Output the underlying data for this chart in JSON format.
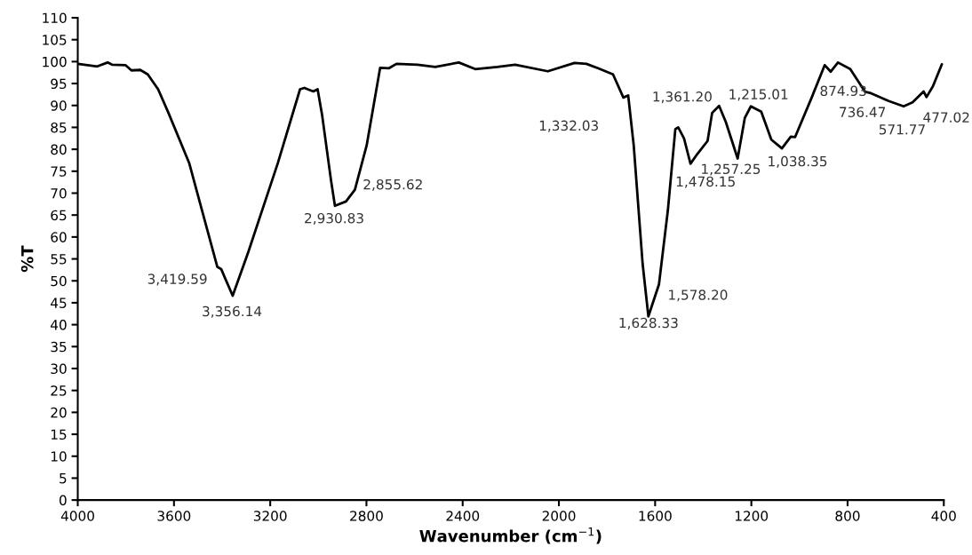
{
  "chart_data": {
    "type": "line",
    "xlabel": "Wavenumber (cm$^{−1}$)",
    "ylabel": "%T",
    "xlim": [
      4000,
      400
    ],
    "xticks": [
      4000,
      3600,
      3200,
      2800,
      2400,
      2000,
      1600,
      1200,
      800,
      400
    ],
    "ylim": [
      0,
      110
    ],
    "yticks": [
      0,
      5,
      10,
      15,
      20,
      25,
      30,
      35,
      40,
      45,
      50,
      55,
      60,
      65,
      70,
      75,
      80,
      85,
      90,
      95,
      100,
      105,
      110
    ],
    "grid": false,
    "marker": "none",
    "line_style": "solid",
    "series": [
      {
        "color": "#000000",
        "x": [
          4000,
          3919,
          3876,
          3858,
          3802,
          3777,
          3740,
          3709,
          3666,
          3623,
          3537,
          3420,
          3404,
          3356,
          3291,
          3168,
          3076,
          3058,
          3021,
          3003,
          2984,
          2947,
          2931,
          2885,
          2848,
          2799,
          2743,
          2706,
          2675,
          2588,
          2514,
          2416,
          2348,
          2256,
          2182,
          2046,
          1935,
          1886,
          1838,
          1775,
          1732,
          1712,
          1689,
          1652,
          1628,
          1584,
          1547,
          1516,
          1504,
          1480,
          1453,
          1425,
          1382,
          1363,
          1334,
          1306,
          1257,
          1227,
          1202,
          1159,
          1117,
          1073,
          1036,
          1018,
          950,
          895,
          870,
          840,
          789,
          727,
          703,
          629,
          567,
          530,
          484,
          472,
          445,
          408
        ],
        "values": [
          99.5,
          98.9,
          99.8,
          99.3,
          99.2,
          98.0,
          98.1,
          97.1,
          93.7,
          88.3,
          76.9,
          53.2,
          52.7,
          46.6,
          56.6,
          76.9,
          93.7,
          94.0,
          93.2,
          93.7,
          87.7,
          72.8,
          67.1,
          68.1,
          70.8,
          80.9,
          98.6,
          98.5,
          99.5,
          99.3,
          98.8,
          99.8,
          98.3,
          98.8,
          99.3,
          97.8,
          99.7,
          99.5,
          98.5,
          97.1,
          91.8,
          92.3,
          80.9,
          53.9,
          41.9,
          49.2,
          66.1,
          84.6,
          85.0,
          82.5,
          76.7,
          78.9,
          81.9,
          88.3,
          89.9,
          86.2,
          77.9,
          87.2,
          89.8,
          88.6,
          82.2,
          80.2,
          82.9,
          82.8,
          91.7,
          99.2,
          97.7,
          99.8,
          98.3,
          93.1,
          92.8,
          91.0,
          89.8,
          90.7,
          93.2,
          91.9,
          94.4,
          99.4
        ]
      }
    ],
    "annotations": [
      "3,419.59",
      "3,356.14",
      "2,930.83",
      "2,855.62",
      "1,332.03",
      "1,361.20",
      "1,215.01",
      "1,257.25",
      "1,478.15",
      "1,038.35",
      "874.93",
      "736.47",
      "571.77",
      "477.02",
      "1,578.20",
      "1,628.33"
    ]
  }
}
